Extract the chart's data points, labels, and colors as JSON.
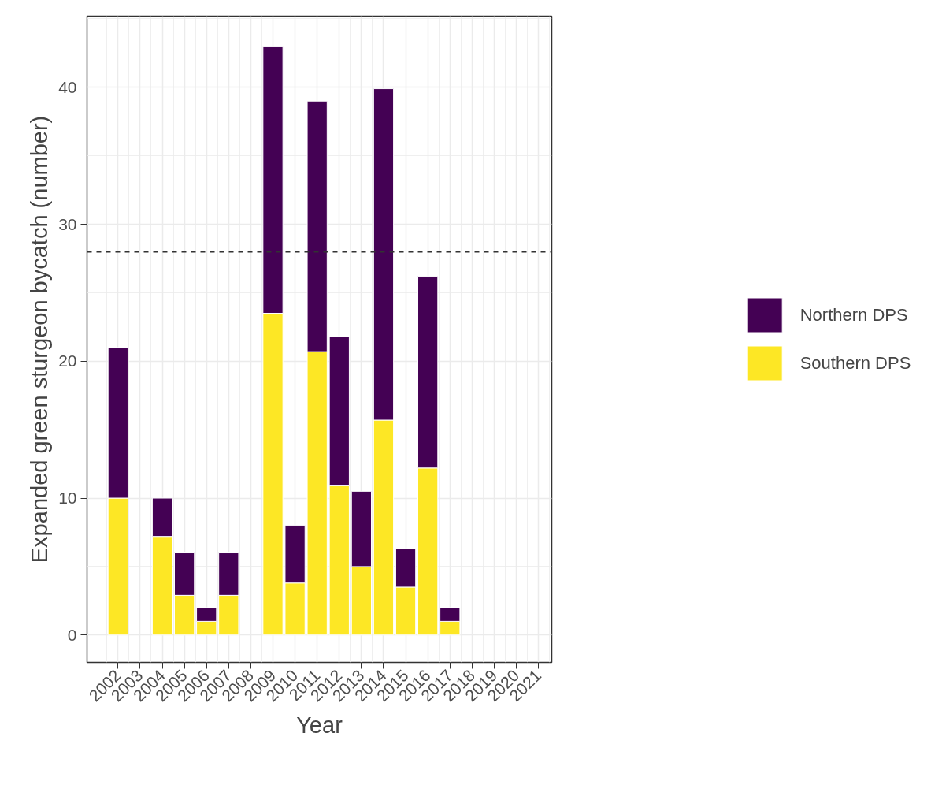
{
  "chart_data": {
    "type": "bar",
    "stacked": true,
    "xlabel": "Year",
    "ylabel": "Expanded green sturgeon bycatch (number)",
    "categories": [
      "2002",
      "2003",
      "2004",
      "2005",
      "2006",
      "2007",
      "2008",
      "2009",
      "2010",
      "2011",
      "2012",
      "2013",
      "2014",
      "2015",
      "2016",
      "2017",
      "2018",
      "2019",
      "2020",
      "2021"
    ],
    "series": [
      {
        "name": "Southern DPS",
        "color": "#fde725",
        "values": [
          10,
          null,
          7.2,
          2.9,
          1,
          2.9,
          null,
          23.5,
          3.8,
          20.7,
          10.9,
          5,
          15.7,
          3.5,
          12.2,
          1,
          null,
          null,
          null,
          null
        ]
      },
      {
        "name": "Northern DPS",
        "color": "#440154",
        "values": [
          11,
          null,
          2.8,
          3.1,
          1,
          3.1,
          null,
          19.5,
          4.2,
          18.3,
          10.9,
          5.5,
          24.2,
          2.8,
          14,
          1,
          null,
          null,
          null,
          null
        ]
      }
    ],
    "ylim": [
      -2.0,
      45.2
    ],
    "yticks": [
      0,
      10,
      20,
      30,
      40
    ],
    "grid": true,
    "legend": "right",
    "ref_lines": [
      {
        "axis": "y",
        "value": 28,
        "color": "#333333",
        "line_style": "dashed"
      }
    ]
  }
}
